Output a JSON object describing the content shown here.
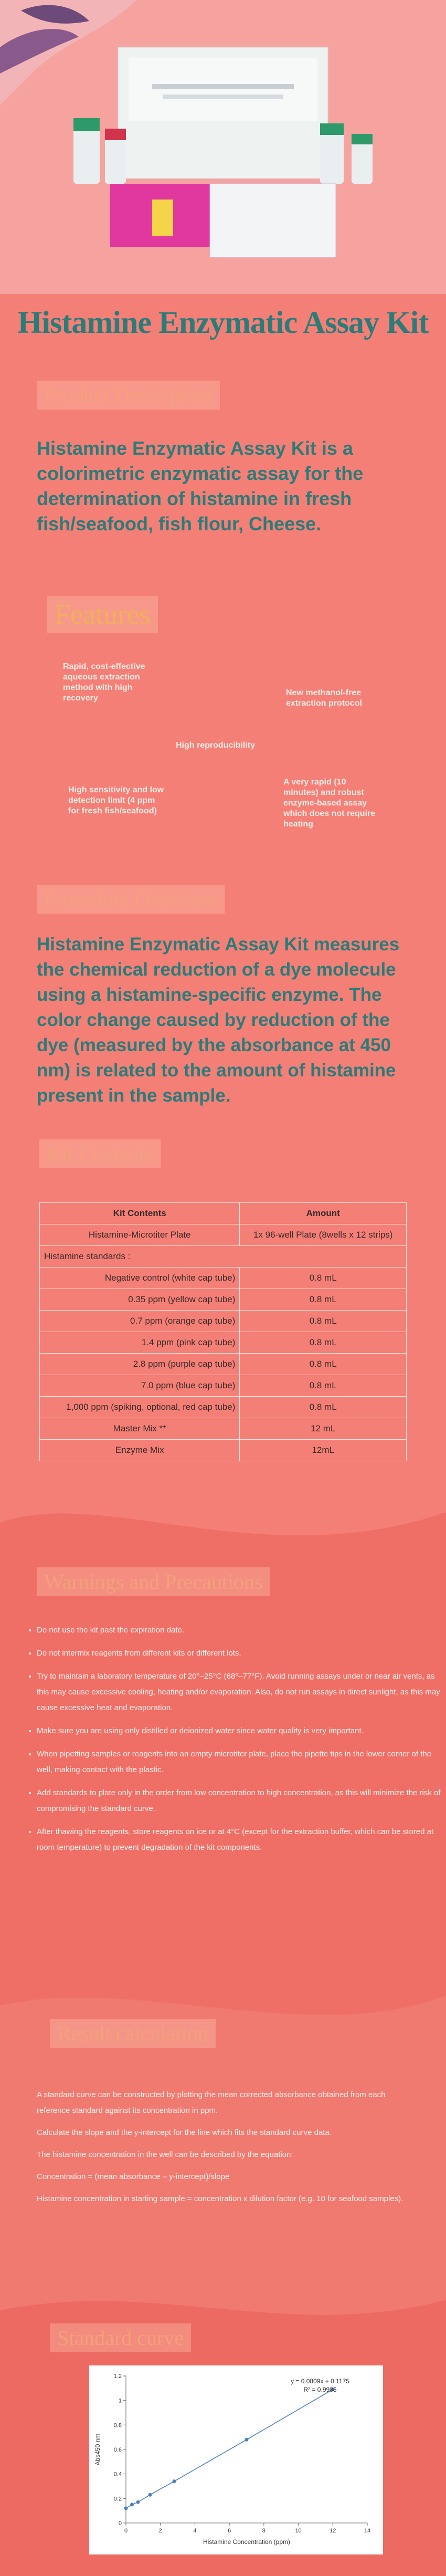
{
  "title": "Histamine Enzymatic Assay Kit",
  "product_description": {
    "heading": "Product Description",
    "text": "Histamine Enzymatic Assay Kit is a colorimetric enzymatic assay for the determination of histamine in fresh fish/seafood, fish flour, Cheese."
  },
  "features": {
    "heading": "Features",
    "items": [
      "Rapid, cost-effective aqueous extraction method with high recovery",
      "New methanol-free extraction protocol",
      "High reproducibility",
      "High sensitivity and low detection limit (4 ppm for fresh fish/seafood)",
      "A very rapid (10 minutes) and robust enzyme-based assay which does not require heating"
    ]
  },
  "procedure_overview": {
    "heading": "Procedure Overview",
    "text": "Histamine Enzymatic Assay Kit measures the chemical reduction of a dye molecule using a histamine-specific enzyme. The color change caused by reduction of the dye (measured by the absorbance at 450 nm) is related to the amount of histamine present in the sample."
  },
  "kit_contents": {
    "heading": "Kit Contents",
    "table": {
      "header": [
        "Kit Contents",
        "Amount"
      ],
      "rows": [
        [
          "Histamine-Microtiter Plate",
          "1x 96-well Plate (8wells x 12 strips)"
        ],
        [
          "Histamine standards :"
        ],
        [
          "Negative control (white cap tube)",
          "0.8 mL"
        ],
        [
          "0.35 ppm (yellow cap tube)",
          "0.8 mL"
        ],
        [
          "0.7 ppm (orange cap tube)",
          "0.8 mL"
        ],
        [
          "1.4 ppm (pink cap tube)",
          "0.8 mL"
        ],
        [
          "2.8 ppm (purple cap tube)",
          "0.8 mL"
        ],
        [
          "7.0 ppm (blue cap tube)",
          "0.8 mL"
        ],
        [
          "1,000 ppm (spiking, optional, red cap tube)",
          "0.8 mL"
        ],
        [
          "Master Mix **",
          "12 mL"
        ],
        [
          "Enzyme Mix",
          "12mL"
        ]
      ]
    }
  },
  "warnings": {
    "heading": "Warnings and Precautions",
    "items": [
      "Do not use the kit past the expiration date.",
      "Do not intermix reagents from different kits or different lots.",
      "Try to maintain a laboratory temperature of 20°–25°C (68°–77°F). Avoid running assays under or near air vents, as this may cause excessive cooling, heating and/or evaporation. Also, do not run assays in direct sunlight, as this may cause excessive heat and evaporation.",
      "Make sure you are using only distilled or deionized water since water quality is very important.",
      "When pipetting samples or reagents into an empty microtiter plate, place the pipette tips in the lower corner of the well, making contact with the plastic.",
      "Add standards to plate only in the order from low concentration to high concentration, as this will minimize the risk of compromising the standard curve.",
      "After thawing the reagents, store reagents on ice or at 4°C (except for the extraction buffer, which can be stored at room temperature) to prevent degradation of the kit components."
    ]
  },
  "result_calculation": {
    "heading": "Result calculation",
    "paragraphs": [
      "A standard curve can be constructed by plotting the mean corrected absorbance obtained from each reference standard against its concentration in ppm.",
      "Calculate the slope and the y-intercept for the line which fits the standard curve data.",
      "The histamine concentration in the well can be described by the equation:",
      "Concentration = (mean absorbance – y-intercept)/slope",
      "Histamine concentration in starting sample = concentration x dilution factor (e.g. 10 for seafood samples)."
    ]
  },
  "standard_curve": {
    "heading": "Standard curve",
    "chart": {
      "type": "line",
      "xlabel": "Histamine Concentration (ppm)",
      "ylabel": "Abs450 nm",
      "equation": "y = 0.0809x + 0.1175",
      "r_squared": "R² = 0.9986",
      "x": [
        0,
        0.35,
        0.7,
        1.4,
        2.8,
        7,
        12
      ],
      "y": [
        0.12,
        0.15,
        0.17,
        0.23,
        0.34,
        0.68,
        1.09
      ],
      "color": "#4a7fc1",
      "xlim": [
        0,
        14
      ],
      "ylim": [
        0,
        1.2
      ],
      "xticks": [
        0,
        2,
        4,
        6,
        8,
        10,
        12,
        14
      ],
      "yticks": [
        0,
        0.2,
        0.4,
        0.6,
        0.8,
        1,
        1.2
      ]
    }
  }
}
